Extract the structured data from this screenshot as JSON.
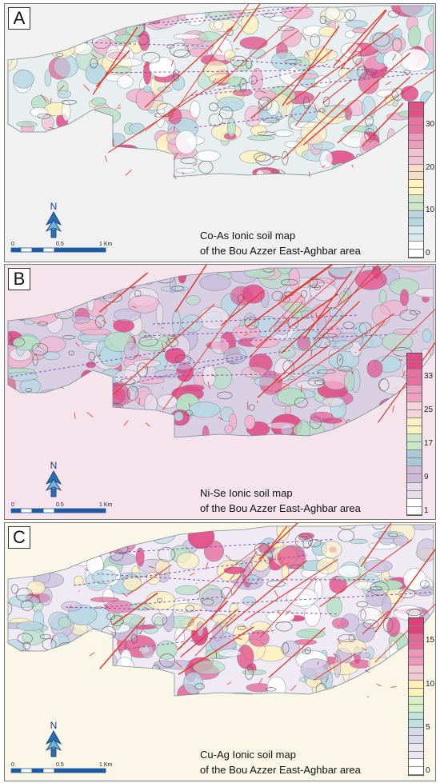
{
  "panels": [
    {
      "id": "A",
      "letter": "A",
      "caption_line1": "Co-As Ionic soil map",
      "caption_line2": "of the Bou Azzer East-Aghbar area",
      "legend_ticks": [
        "30",
        "20",
        "10",
        "0"
      ],
      "legend_colors": [
        "#ffffff",
        "#d9e9ef",
        "#b9d7e3",
        "#cfe6c6",
        "#fff3c2",
        "#f7dcc6",
        "#f4c2d4",
        "#ee9bbd",
        "#e8739f",
        "#e05085"
      ],
      "scale_labels": [
        "0",
        "0.5",
        "1 Km"
      ],
      "north_label": "N"
    },
    {
      "id": "B",
      "letter": "B",
      "caption_line1": "Ni-Se Ionic soil map",
      "caption_line2": "of the Bou Azzer East-Aghbar area",
      "legend_ticks": [
        "33",
        "25",
        "17",
        "9",
        "1"
      ],
      "legend_colors": [
        "#ffffff",
        "#e7dce9",
        "#cdbad8",
        "#a9c9d6",
        "#c9e6c8",
        "#fff2c0",
        "#f6d3d8",
        "#ef9fc0",
        "#e8719f",
        "#df4b83"
      ],
      "scale_labels": [
        "0",
        "0.5",
        "1 Km"
      ],
      "north_label": "N"
    },
    {
      "id": "C",
      "letter": "C",
      "caption_line1": "Cu-Ag Ionic soil map",
      "caption_line2": "of the Bou Azzer East-Aghbar area",
      "legend_ticks": [
        "15",
        "10",
        "5",
        "0"
      ],
      "legend_colors": [
        "#ffffff",
        "#ece6f0",
        "#d8dbe9",
        "#bfe3df",
        "#d9efc7",
        "#fff0b8",
        "#f4c7d4",
        "#ee98ba",
        "#e66a98",
        "#de3f78"
      ],
      "scale_labels": [
        "0",
        "0.5",
        "1 Km"
      ],
      "north_label": "N"
    }
  ],
  "colors": {
    "fault": "#e2382b",
    "dashed_line": "#8a4fb5",
    "contour": "#6f7f88",
    "hot": "#e24a86",
    "warm": "#f1b6cf",
    "mid": "#fff2c2",
    "cool": "#b7d8e4",
    "green": "#b6dfc5",
    "lav": "#c9bfdd"
  }
}
